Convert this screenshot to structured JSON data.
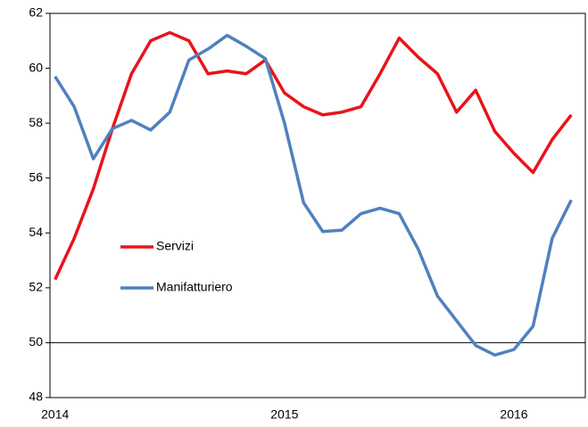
{
  "chart_data": {
    "type": "line",
    "categories": [
      "2014",
      null,
      null,
      null,
      null,
      null,
      null,
      null,
      null,
      null,
      null,
      null,
      "2015",
      null,
      null,
      null,
      null,
      null,
      null,
      null,
      null,
      null,
      null,
      null,
      "2016",
      null,
      null,
      null
    ],
    "series": [
      {
        "name": "Servizi",
        "color": "#e8141a",
        "values": [
          52.3,
          53.8,
          55.6,
          57.8,
          59.8,
          61.0,
          61.3,
          61.0,
          59.8,
          59.9,
          59.8,
          60.3,
          59.1,
          58.6,
          58.3,
          58.4,
          58.6,
          59.8,
          61.1,
          60.4,
          59.8,
          58.4,
          59.2,
          57.7,
          56.9,
          56.2,
          57.4,
          58.3
        ]
      },
      {
        "name": "Manifatturiero",
        "color": "#4f81bd",
        "values": [
          59.7,
          58.6,
          56.7,
          57.8,
          58.1,
          57.75,
          58.4,
          60.3,
          60.7,
          61.2,
          60.8,
          60.35,
          58.0,
          55.1,
          54.05,
          54.1,
          54.7,
          54.9,
          54.7,
          53.4,
          51.7,
          50.8,
          49.9,
          49.55,
          49.75,
          50.6,
          53.8,
          55.2
        ]
      }
    ],
    "ylim": [
      48,
      62
    ],
    "yticks": [
      48,
      50,
      52,
      54,
      56,
      58,
      60,
      62
    ],
    "hline": 50,
    "grid": false,
    "legend": "inside-left"
  }
}
